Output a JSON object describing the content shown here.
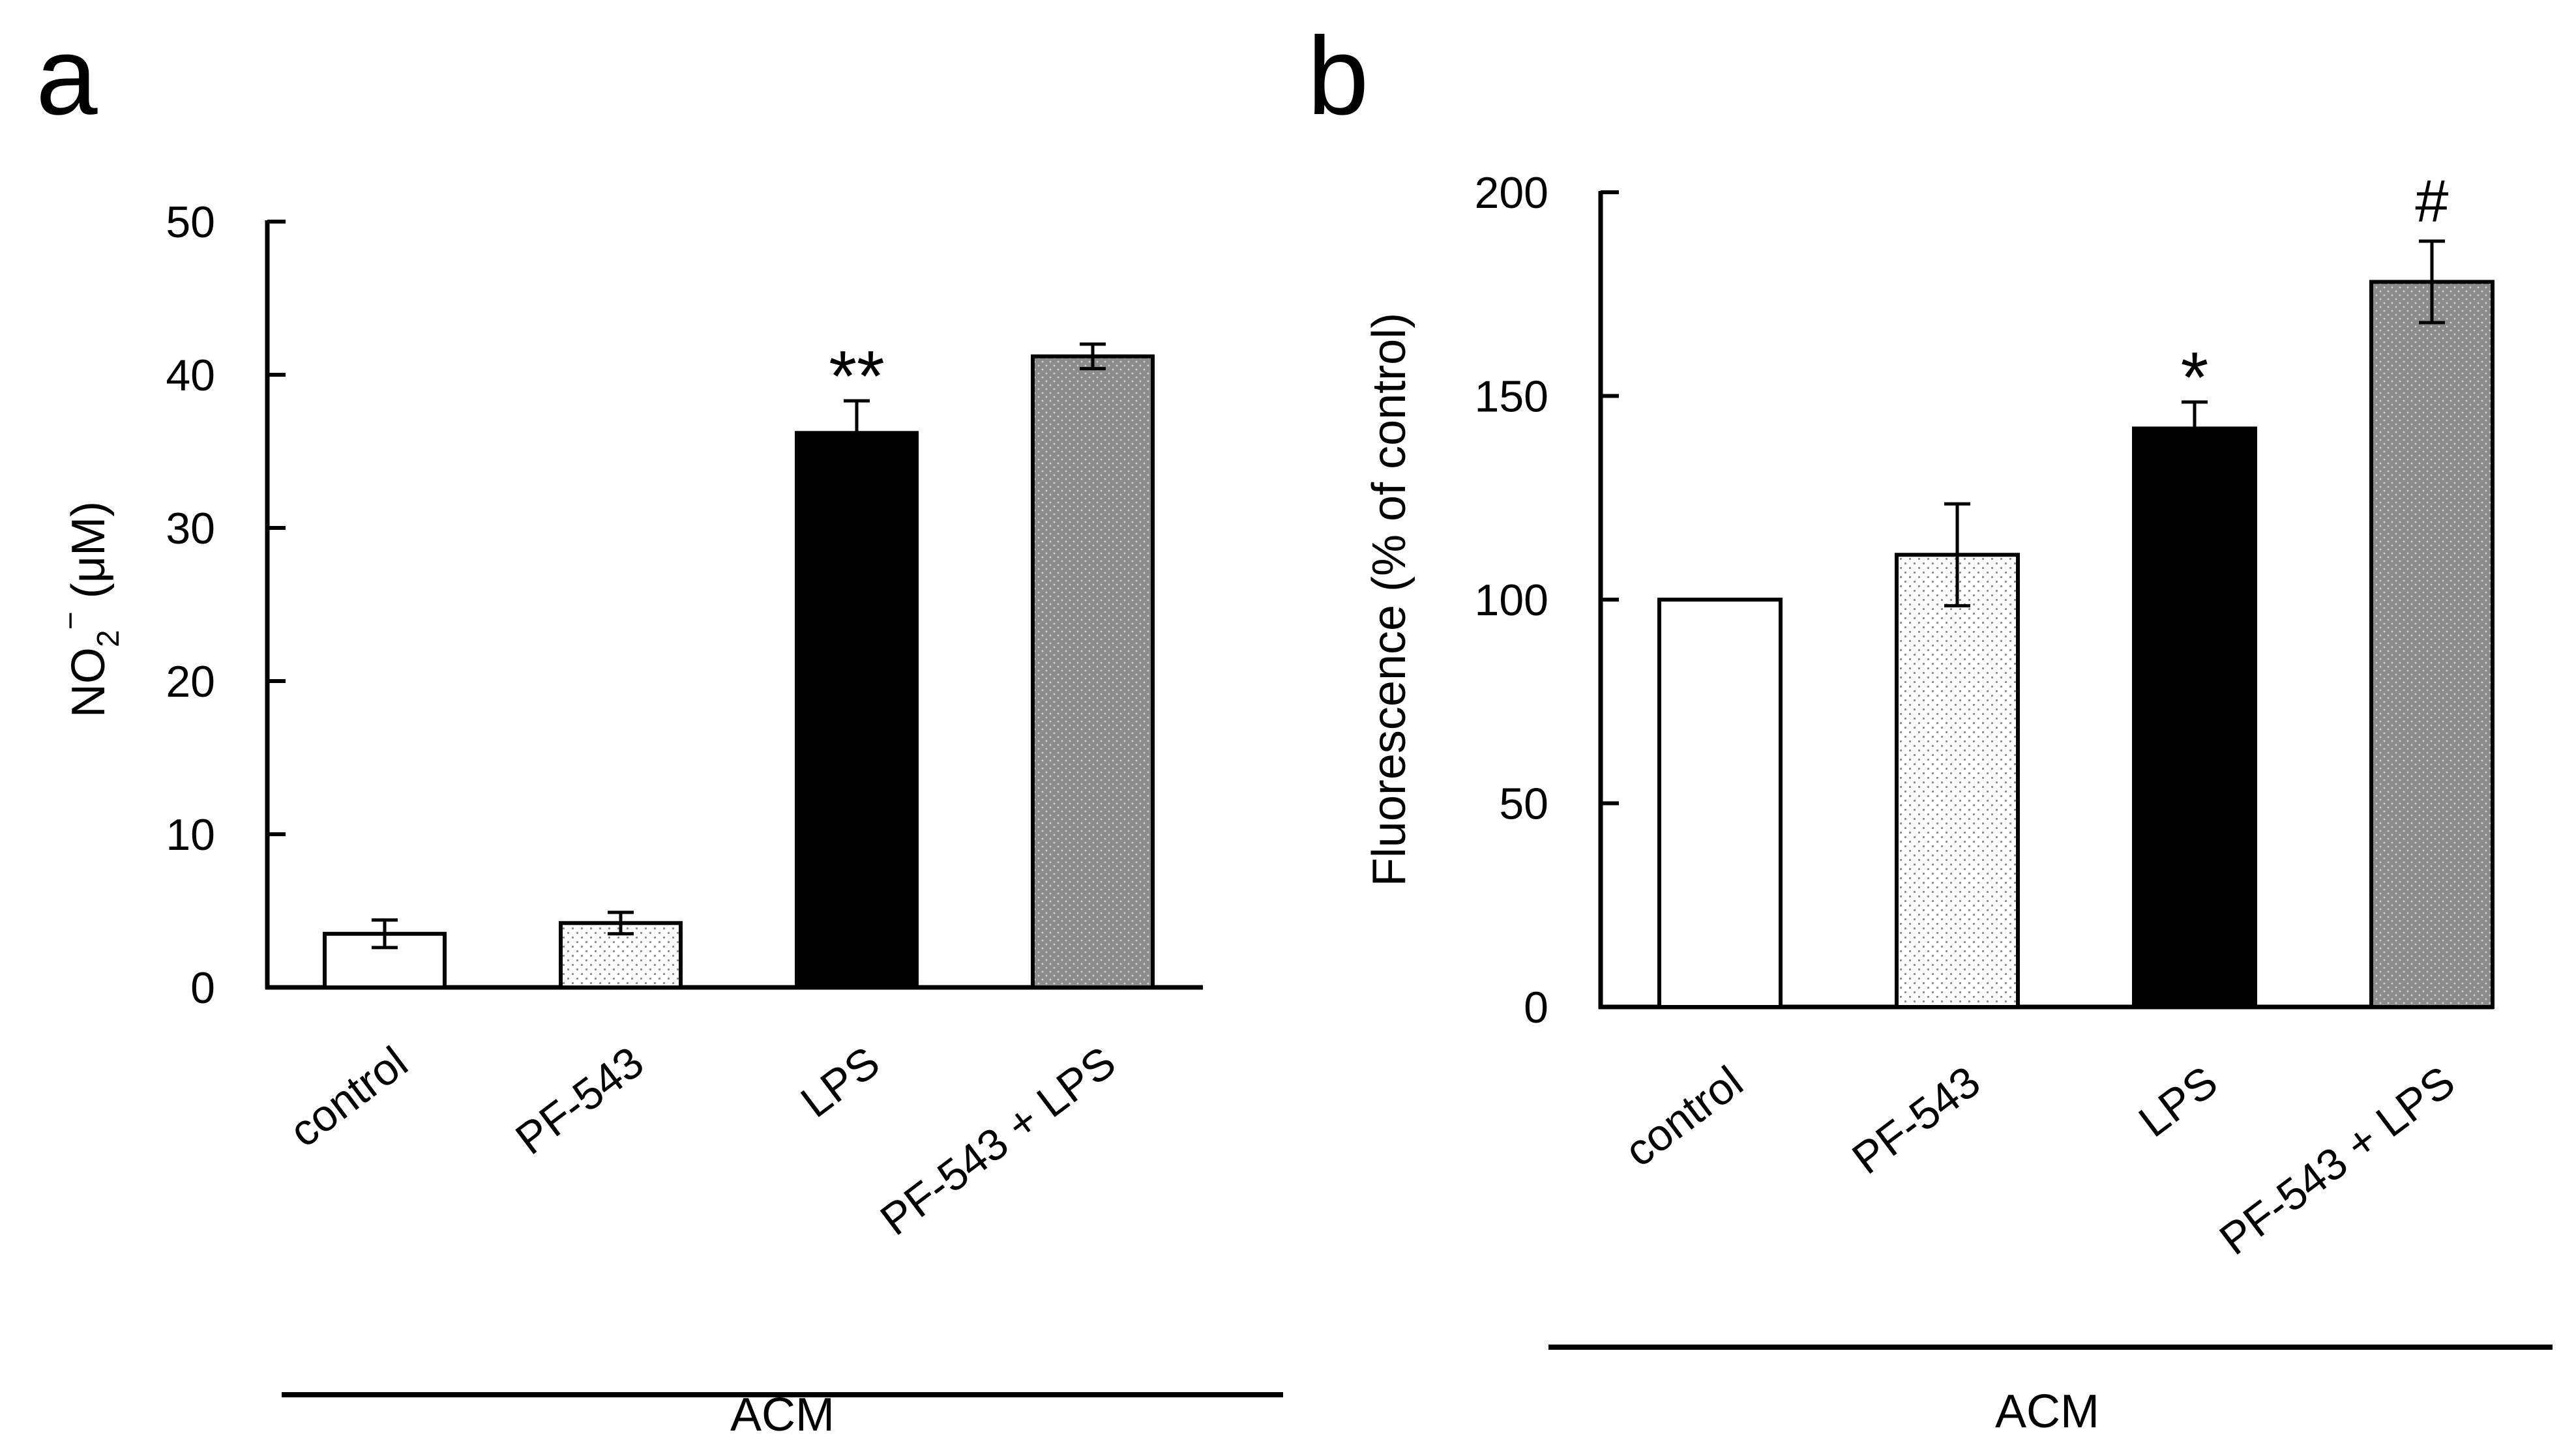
{
  "figure": {
    "panel_a_label": "a",
    "panel_b_label": "b"
  },
  "chart_data": [
    {
      "type": "bar",
      "panel": "a",
      "categories": [
        "control",
        "PF-543",
        "LPS",
        "PF-543 + LPS"
      ],
      "values": [
        3.5,
        4.2,
        36.2,
        41.2
      ],
      "errors": [
        0.9,
        0.7,
        2.1,
        0.8
      ],
      "fills": [
        "white",
        "light-dots",
        "black",
        "gray-dots"
      ],
      "annotations": [
        "",
        "",
        "**",
        ""
      ],
      "ylabel_main": "NO",
      "ylabel_sub": "2",
      "ylabel_sup": "−",
      "ylabel_rest": " (μM)",
      "ylim": [
        0,
        50
      ],
      "yticks": [
        0,
        10,
        20,
        30,
        40,
        50
      ],
      "group_label": "ACM"
    },
    {
      "type": "bar",
      "panel": "b",
      "categories": [
        "control",
        "PF-543",
        "LPS",
        "PF-543 + LPS"
      ],
      "values": [
        100,
        111,
        142,
        178
      ],
      "errors": [
        0,
        12.5,
        6.5,
        10
      ],
      "fills": [
        "white",
        "light-dots",
        "black",
        "gray-dots"
      ],
      "annotations": [
        "",
        "",
        "*",
        "#"
      ],
      "ylabel": "Fluorescence (% of control)",
      "ylim": [
        0,
        200
      ],
      "yticks": [
        0,
        50,
        100,
        150,
        200
      ],
      "group_label": "ACM"
    }
  ]
}
